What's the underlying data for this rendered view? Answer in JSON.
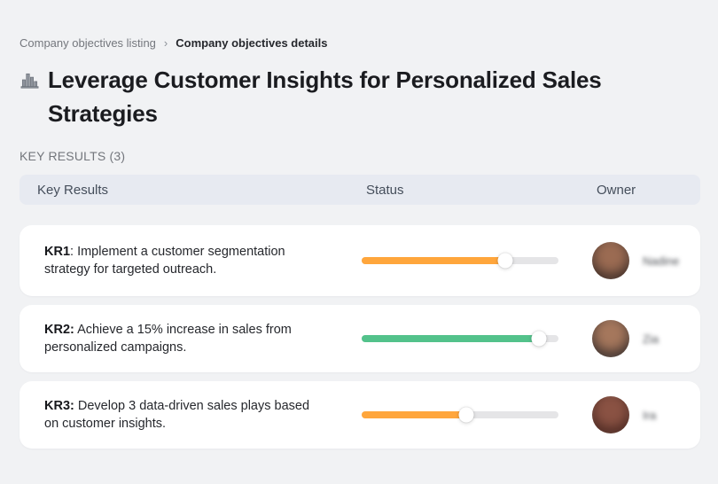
{
  "breadcrumb": {
    "separator": "›",
    "items": [
      {
        "label": "Company objectives listing"
      },
      {
        "label": "Company objectives details"
      }
    ]
  },
  "page": {
    "title": "Leverage Customer Insights for Personalized Sales Strategies",
    "title_icon": "buildings-bar-chart-icon",
    "section_label": "KEY RESULTS (3)"
  },
  "colors": {
    "background": "#f1f2f4",
    "header_bg": "#e7eaf1",
    "card_bg": "#ffffff",
    "track": "#e5e5e7",
    "orange": "#FFA63C",
    "green": "#53C28B"
  },
  "table": {
    "columns": [
      "Key Results",
      "Status",
      "Owner"
    ],
    "rows": [
      {
        "kr_bold": "KR1",
        "kr_rest": ": Implement a customer segmentation strategy for targeted outreach.",
        "progress_percent": 73,
        "progress_color": "#FFA63C",
        "owner": {
          "name": "Nadine",
          "avatar_colors": [
            "#9b6b52",
            "#3a2b26",
            "#7d4a3a"
          ]
        }
      },
      {
        "kr_bold": "KR2:",
        "kr_rest": " Achieve a 15% increase in sales from personalized campaigns.",
        "progress_percent": 90,
        "progress_color": "#53C28B",
        "owner": {
          "name": "Zia",
          "avatar_colors": [
            "#a5775c",
            "#352a28",
            "#9fb0b2"
          ]
        }
      },
      {
        "kr_bold": "KR3:",
        "kr_rest": " Develop 3 data-driven sales plays based on customer insights.",
        "progress_percent": 53,
        "progress_color": "#FFA63C",
        "owner": {
          "name": "Ira",
          "avatar_colors": [
            "#8a5243",
            "#46251f",
            "#c4826b"
          ]
        }
      }
    ]
  }
}
